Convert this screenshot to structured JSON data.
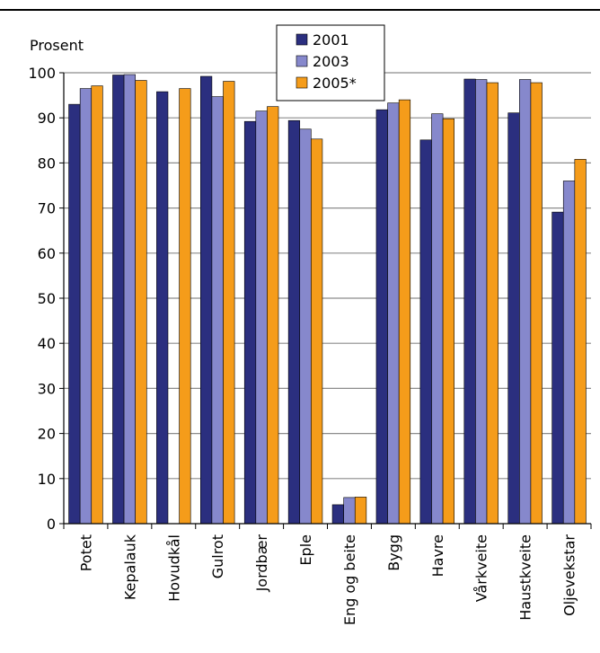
{
  "chart_data": {
    "type": "bar",
    "ylabel": "Prosent",
    "ylim": [
      0,
      100
    ],
    "yticks": [
      0,
      10,
      20,
      30,
      40,
      50,
      60,
      70,
      80,
      90,
      100
    ],
    "categories": [
      "Potet",
      "Kepalauk",
      "Hovudkål",
      "Gulrot",
      "Jordbær",
      "Eple",
      "Eng og beite",
      "Bygg",
      "Havre",
      "Vårkveite",
      "Haustkveite",
      "Oljevekstar"
    ],
    "series": [
      {
        "name": "2001",
        "color": "#2b2f7f",
        "values": [
          93,
          99.5,
          95.8,
          99.2,
          89.2,
          89.4,
          4.2,
          91.8,
          85.1,
          98.6,
          91.1,
          69.1
        ]
      },
      {
        "name": "2003",
        "color": "#8688cc",
        "values": [
          96.5,
          99.6,
          null,
          94.7,
          91.5,
          87.5,
          5.8,
          93.3,
          90.9,
          98.5,
          98.5,
          76
        ]
      },
      {
        "name": "2005*",
        "color": "#f59c1a",
        "values": [
          97.1,
          98.3,
          96.5,
          98.1,
          92.5,
          85.3,
          5.9,
          94,
          89.8,
          97.8,
          97.8,
          80.8
        ]
      }
    ],
    "grid": true,
    "legend_position": "top-center"
  }
}
